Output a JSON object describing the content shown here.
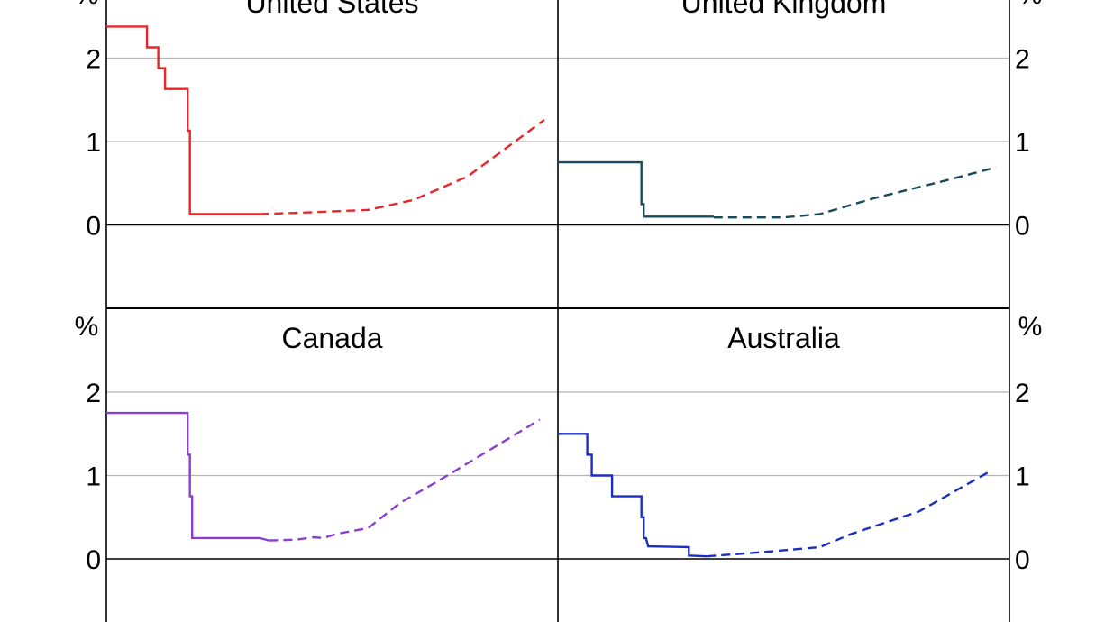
{
  "chart_data": {
    "type": "line",
    "unit": "%",
    "ylim": [
      -1,
      2.7
    ],
    "yticks": [
      0,
      1,
      2
    ],
    "grid": true,
    "panels": [
      {
        "title": "United States",
        "color": "#e8262a",
        "actual": [
          [
            0,
            2.38
          ],
          [
            0.09,
            2.38
          ],
          [
            0.09,
            2.13
          ],
          [
            0.115,
            2.13
          ],
          [
            0.115,
            1.88
          ],
          [
            0.13,
            1.88
          ],
          [
            0.13,
            1.63
          ],
          [
            0.18,
            1.63
          ],
          [
            0.18,
            1.13
          ],
          [
            0.185,
            1.13
          ],
          [
            0.185,
            0.13
          ],
          [
            0.34,
            0.13
          ]
        ],
        "expected": [
          [
            0.34,
            0.13
          ],
          [
            0.45,
            0.15
          ],
          [
            0.58,
            0.18
          ],
          [
            0.68,
            0.3
          ],
          [
            0.8,
            0.58
          ],
          [
            0.97,
            1.26
          ]
        ]
      },
      {
        "title": "United Kingdom",
        "color": "#1a4a5a",
        "actual": [
          [
            0,
            0.75
          ],
          [
            0.185,
            0.75
          ],
          [
            0.185,
            0.25
          ],
          [
            0.19,
            0.25
          ],
          [
            0.19,
            0.1
          ],
          [
            0.345,
            0.1
          ]
        ],
        "expected": [
          [
            0.345,
            0.09
          ],
          [
            0.5,
            0.09
          ],
          [
            0.58,
            0.13
          ],
          [
            0.7,
            0.32
          ],
          [
            0.85,
            0.52
          ],
          [
            0.97,
            0.69
          ]
        ]
      },
      {
        "title": "Canada",
        "color": "#8a3fd1",
        "actual": [
          [
            0,
            1.75
          ],
          [
            0.18,
            1.75
          ],
          [
            0.18,
            1.25
          ],
          [
            0.185,
            1.25
          ],
          [
            0.185,
            0.75
          ],
          [
            0.19,
            0.75
          ],
          [
            0.19,
            0.25
          ],
          [
            0.34,
            0.25
          ],
          [
            0.36,
            0.22
          ]
        ],
        "expected": [
          [
            0.36,
            0.22
          ],
          [
            0.42,
            0.23
          ],
          [
            0.46,
            0.26
          ],
          [
            0.48,
            0.25
          ],
          [
            0.51,
            0.3
          ],
          [
            0.58,
            0.37
          ],
          [
            0.65,
            0.67
          ],
          [
            0.74,
            0.95
          ],
          [
            0.96,
            1.67
          ]
        ]
      },
      {
        "title": "Australia",
        "color": "#1a2ec0",
        "actual": [
          [
            0,
            1.5
          ],
          [
            0.065,
            1.5
          ],
          [
            0.065,
            1.25
          ],
          [
            0.075,
            1.25
          ],
          [
            0.075,
            1.0
          ],
          [
            0.12,
            1.0
          ],
          [
            0.12,
            0.75
          ],
          [
            0.185,
            0.75
          ],
          [
            0.185,
            0.5
          ],
          [
            0.19,
            0.5
          ],
          [
            0.19,
            0.25
          ],
          [
            0.195,
            0.25
          ],
          [
            0.2,
            0.15
          ],
          [
            0.29,
            0.14
          ],
          [
            0.29,
            0.04
          ],
          [
            0.33,
            0.03
          ]
        ],
        "expected": [
          [
            0.33,
            0.03
          ],
          [
            0.45,
            0.08
          ],
          [
            0.58,
            0.14
          ],
          [
            0.65,
            0.3
          ],
          [
            0.8,
            0.57
          ],
          [
            0.96,
            1.06
          ]
        ]
      }
    ]
  }
}
